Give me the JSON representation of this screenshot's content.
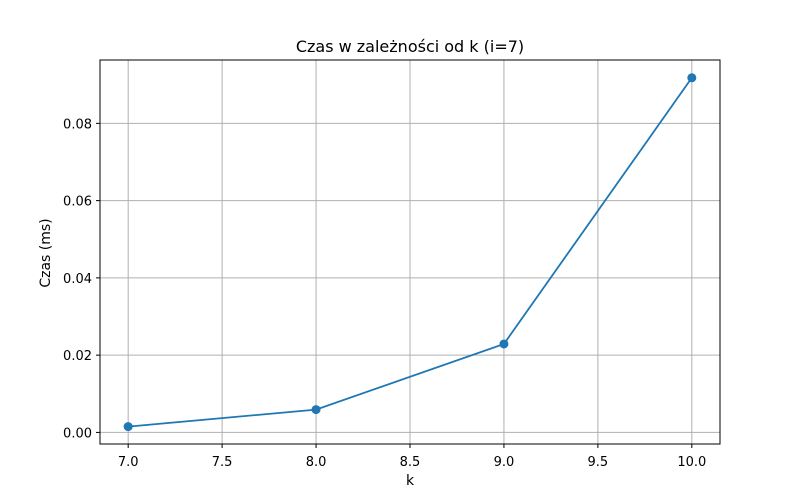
{
  "chart_data": {
    "type": "line",
    "title": "Czas w zależności od k (i=7)",
    "xlabel": "k",
    "ylabel": "Czas (ms)",
    "x": [
      7,
      8,
      9,
      10
    ],
    "series": [
      {
        "values": [
          0.0015,
          0.0059,
          0.0229,
          0.0918
        ],
        "color": "#1f77b4",
        "marker": "circle"
      }
    ],
    "xlim": [
      6.85,
      10.15
    ],
    "ylim": [
      -0.003,
      0.0964
    ],
    "xticks": [
      "7.0",
      "7.5",
      "8.0",
      "8.5",
      "9.0",
      "9.5",
      "10.0"
    ],
    "yticks": [
      "0.00",
      "0.02",
      "0.04",
      "0.06",
      "0.08"
    ],
    "grid": true
  }
}
